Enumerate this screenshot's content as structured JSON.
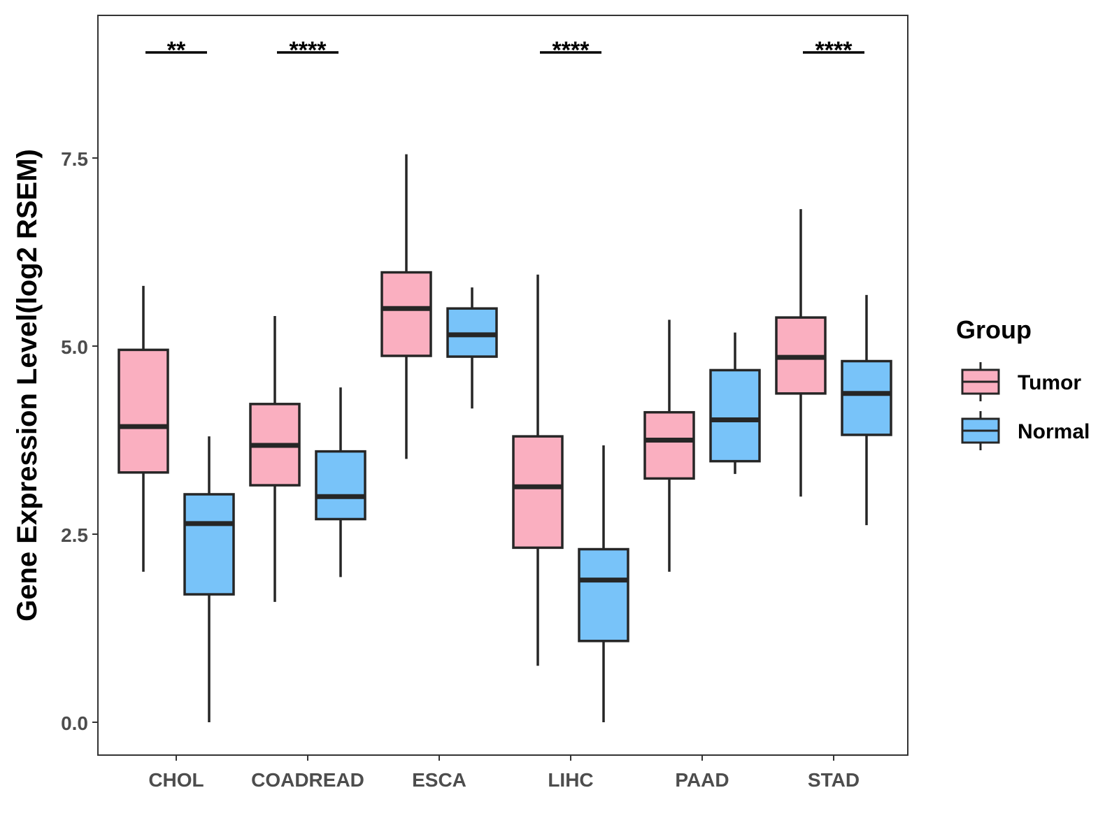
{
  "chart_data": {
    "type": "boxplot",
    "title": "",
    "xlabel": "",
    "ylabel": "Gene Expression Level(log2 RSEM)",
    "ylim": [
      -0.45,
      9.4
    ],
    "yticks": [
      "0.0",
      "2.5",
      "5.0",
      "7.5"
    ],
    "ytick_values": [
      0,
      2.5,
      5.0,
      7.5
    ],
    "categories": [
      "CHOL",
      "COADREAD",
      "ESCA",
      "LIHC",
      "PAAD",
      "STAD"
    ],
    "legend": {
      "title": "Group",
      "position": "right",
      "entries": [
        "Tumor",
        "Normal"
      ]
    },
    "colors": {
      "Tumor": "#FAAFC0",
      "Normal": "#78C3F9",
      "outline": "#262626"
    },
    "series": [
      {
        "name": "Tumor",
        "boxes": [
          {
            "category": "CHOL",
            "min": 2.0,
            "q1": 3.32,
            "median": 3.93,
            "q3": 4.95,
            "max": 5.8
          },
          {
            "category": "COADREAD",
            "min": 1.6,
            "q1": 3.15,
            "median": 3.68,
            "q3": 4.23,
            "max": 5.4
          },
          {
            "category": "ESCA",
            "min": 3.5,
            "q1": 4.87,
            "median": 5.5,
            "q3": 5.98,
            "max": 7.55
          },
          {
            "category": "LIHC",
            "min": 0.75,
            "q1": 2.32,
            "median": 3.13,
            "q3": 3.8,
            "max": 5.95
          },
          {
            "category": "PAAD",
            "min": 2.0,
            "q1": 3.24,
            "median": 3.75,
            "q3": 4.12,
            "max": 5.35
          },
          {
            "category": "STAD",
            "min": 3.0,
            "q1": 4.37,
            "median": 4.85,
            "q3": 5.38,
            "max": 6.82
          }
        ]
      },
      {
        "name": "Normal",
        "boxes": [
          {
            "category": "CHOL",
            "min": 0.0,
            "q1": 1.7,
            "median": 2.64,
            "q3": 3.03,
            "max": 3.8
          },
          {
            "category": "COADREAD",
            "min": 1.93,
            "q1": 2.7,
            "median": 3.0,
            "q3": 3.6,
            "max": 4.45
          },
          {
            "category": "ESCA",
            "min": 4.17,
            "q1": 4.86,
            "median": 5.15,
            "q3": 5.5,
            "max": 5.78
          },
          {
            "category": "LIHC",
            "min": 0.0,
            "q1": 1.08,
            "median": 1.89,
            "q3": 2.3,
            "max": 3.68
          },
          {
            "category": "PAAD",
            "min": 3.3,
            "q1": 3.47,
            "median": 4.02,
            "q3": 4.68,
            "max": 5.18
          },
          {
            "category": "STAD",
            "min": 2.62,
            "q1": 3.82,
            "median": 4.37,
            "q3": 4.8,
            "max": 5.68
          }
        ]
      }
    ],
    "significance": [
      {
        "category": "CHOL",
        "label": "**"
      },
      {
        "category": "COADREAD",
        "label": "****"
      },
      {
        "category": "LIHC",
        "label": "****"
      },
      {
        "category": "STAD",
        "label": "****"
      }
    ]
  }
}
